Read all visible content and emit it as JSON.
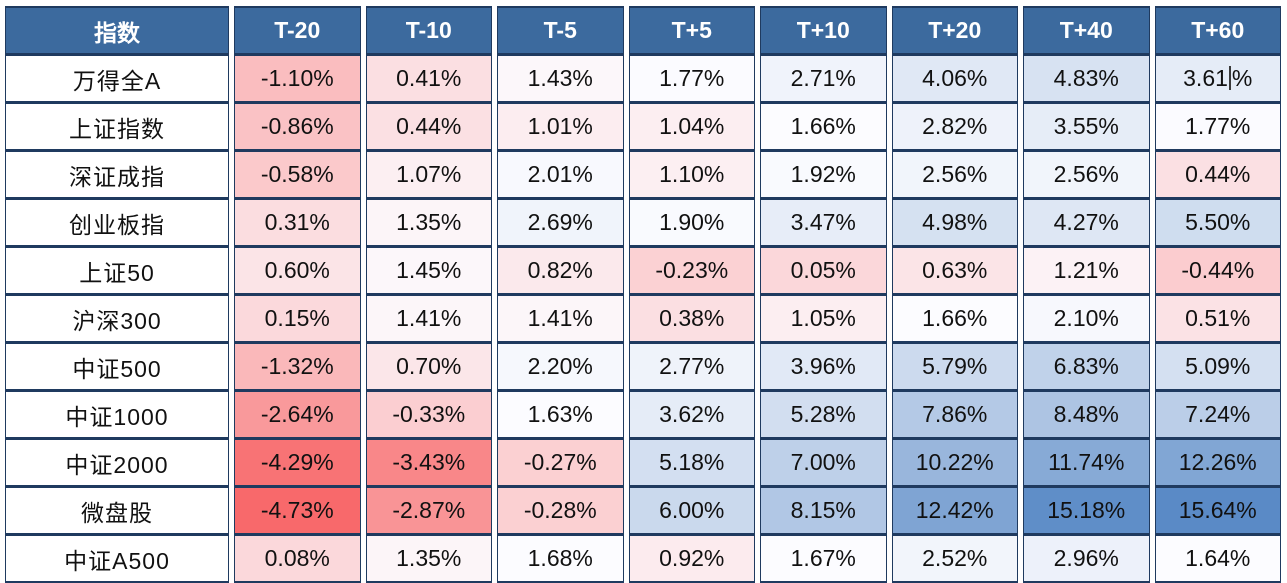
{
  "chart_data": {
    "type": "heatmap",
    "row_header_label": "指数",
    "columns": [
      "T-20",
      "T-10",
      "T-5",
      "T+5",
      "T+10",
      "T+20",
      "T+40",
      "T+60"
    ],
    "rows": [
      "万得全A",
      "上证指数",
      "深证成指",
      "创业板指",
      "上证50",
      "沪深300",
      "中证500",
      "中证1000",
      "中证2000",
      "微盘股",
      "中证A500"
    ],
    "values": [
      [
        -1.1,
        0.41,
        1.43,
        1.77,
        2.71,
        4.06,
        4.83,
        3.61
      ],
      [
        -0.86,
        0.44,
        1.01,
        1.04,
        1.66,
        2.82,
        3.55,
        1.77
      ],
      [
        -0.58,
        1.07,
        2.01,
        1.1,
        1.92,
        2.56,
        2.56,
        0.44
      ],
      [
        0.31,
        1.35,
        2.69,
        1.9,
        3.47,
        4.98,
        4.27,
        5.5
      ],
      [
        0.6,
        1.45,
        0.82,
        -0.23,
        0.05,
        0.63,
        1.21,
        -0.44
      ],
      [
        0.15,
        1.41,
        1.41,
        0.38,
        1.05,
        1.66,
        2.1,
        0.51
      ],
      [
        -1.32,
        0.7,
        2.2,
        2.77,
        3.96,
        5.79,
        6.83,
        5.09
      ],
      [
        -2.64,
        -0.33,
        1.63,
        3.62,
        5.28,
        7.86,
        8.48,
        7.24
      ],
      [
        -4.29,
        -3.43,
        -0.27,
        5.18,
        7.0,
        10.22,
        11.74,
        12.26
      ],
      [
        -4.73,
        -2.87,
        -0.28,
        6.0,
        8.15,
        12.42,
        15.18,
        15.64
      ],
      [
        0.08,
        1.35,
        1.68,
        0.92,
        1.67,
        2.52,
        2.96,
        1.64
      ]
    ],
    "value_suffix": "%",
    "value_decimals": 2,
    "color_scale": {
      "min": {
        "value": -4.73,
        "color": "#F8696B"
      },
      "mid": {
        "value": 1.65,
        "color": "#FCFCFF"
      },
      "max": {
        "value": 15.64,
        "color": "#5A8AC6"
      }
    },
    "text_caret": {
      "row_index": 0,
      "col_index": 7
    }
  },
  "style": {
    "header_bg": "#3C6A9E",
    "header_text": "#FFFFFF",
    "grid_line": "#1F3A5F",
    "page_bg": "#FFFFFF",
    "value_text": "#111111"
  }
}
